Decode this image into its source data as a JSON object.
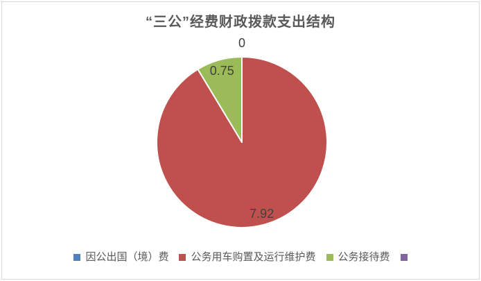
{
  "frame": {
    "background": "#ffffff",
    "border_color": "#d9d9d9"
  },
  "chart_data": {
    "type": "pie",
    "title": "“三公”经费财政拨款支出结构",
    "direction": "clockwise",
    "start_angle_deg": 0,
    "label_color": "#404040",
    "slices": [
      {
        "name": "因公出国（境）费",
        "value": 0,
        "label": "0",
        "color": "#4F81BD"
      },
      {
        "name": "公务用车购置及运行维护费",
        "value": 7.92,
        "label": "7.92",
        "color": "#C0504D"
      },
      {
        "name": "公务接待费",
        "value": 0.75,
        "label": "0.75",
        "color": "#9BBB59"
      }
    ],
    "legend": {
      "position": "bottom",
      "items": [
        {
          "label": "因公出国（境）费",
          "color": "#4F81BD"
        },
        {
          "label": "公务用车购置及运行维护费",
          "color": "#C0504D"
        },
        {
          "label": "公务接待费",
          "color": "#9BBB59"
        },
        {
          "label": "",
          "color": "#8064A2"
        }
      ]
    }
  }
}
